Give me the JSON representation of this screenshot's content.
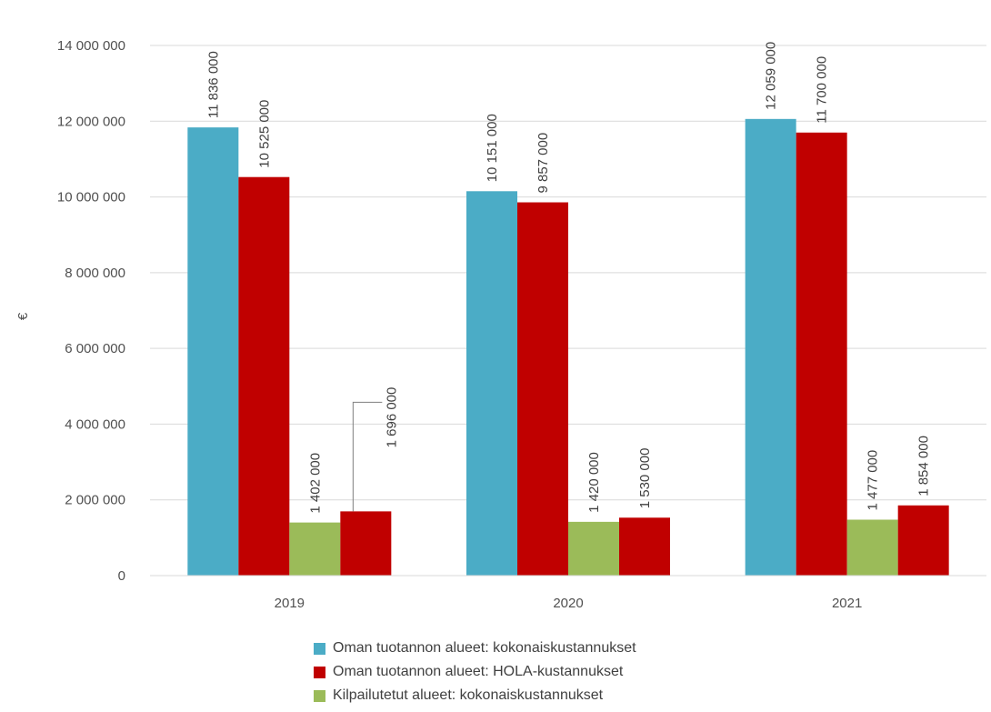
{
  "chart_data": {
    "type": "bar",
    "ylabel": "€",
    "ylim": [
      0,
      14000000
    ],
    "yticks": [
      0,
      2000000,
      4000000,
      6000000,
      8000000,
      10000000,
      12000000,
      14000000
    ],
    "ytick_labels": [
      "0",
      "2 000 000",
      "4 000 000",
      "6 000 000",
      "8 000 000",
      "10 000 000",
      "12 000 000",
      "14 000 000"
    ],
    "grid": true,
    "legend_position": "bottom",
    "categories": [
      "2019",
      "2020",
      "2021"
    ],
    "series": [
      {
        "name": "Oman tuotannon alueet: kokonaiskustannukset",
        "color": "#4BACC6",
        "values": [
          11836000,
          10151000,
          12059000
        ],
        "labels": [
          "11 836 000",
          "10 151 000",
          "12 059 000"
        ]
      },
      {
        "name": "Oman tuotannon alueet: HOLA-kustannukset",
        "color": "#C00000",
        "values": [
          10525000,
          9857000,
          11700000
        ],
        "labels": [
          "10 525 000",
          "9 857 000",
          "11 700 000"
        ]
      },
      {
        "name": "Kilpailutetut alueet: kokonaiskustannukset",
        "color": "#9BBB59",
        "values": [
          1402000,
          1420000,
          1477000
        ],
        "labels": [
          "1 402 000",
          "1 420 000",
          "1 477 000"
        ]
      },
      {
        "name": "",
        "color": "#C00000",
        "values": [
          1696000,
          1530000,
          1854000
        ],
        "labels": [
          "1 696 000",
          "1 530 000",
          "1 854 000"
        ]
      }
    ]
  }
}
